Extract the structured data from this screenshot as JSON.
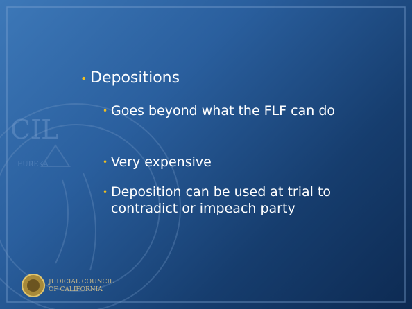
{
  "slide": {
    "heading": "Depositions",
    "points": [
      "Goes beyond what the FLF can do",
      "Very expensive",
      "Deposition can be used at trial to contradict or impeach party"
    ],
    "footer": [
      "JUDICIAL COUNCIL",
      "OF CALIFORNIA"
    ]
  }
}
